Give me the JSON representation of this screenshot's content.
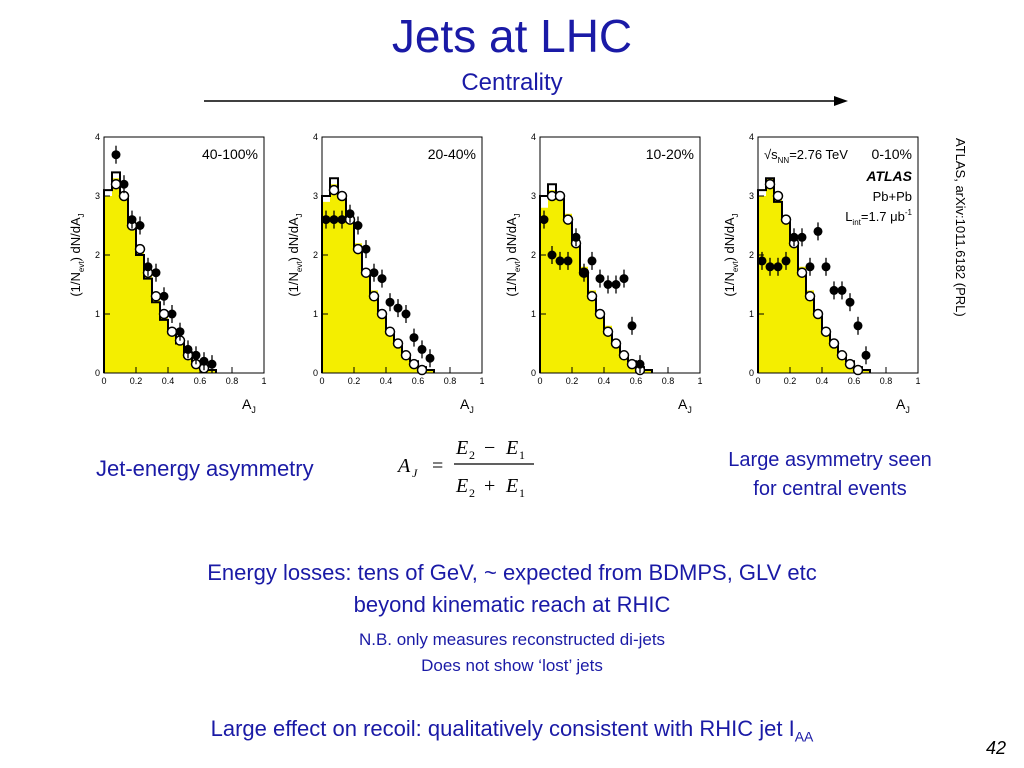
{
  "slide": {
    "title": "Jets at LHC",
    "subtitle": "Centrality",
    "citation": "ATLAS, arXiv:1011.6182 (PRL)",
    "jet_energy_label": "Jet-energy asymmetry",
    "large_asym_line1": "Large asymmetry seen",
    "large_asym_line2": "for central events",
    "line1": "Energy losses: tens of GeV, ~ expected from BDMPS, GLV etc",
    "line2": "beyond kinematic reach at RHIC",
    "line3": "N.B. only measures reconstructed di-jets",
    "line4": "Does not show ‘lost’ jets",
    "recoil_text": "Large effect on recoil: qualitatively consistent with RHIC jet I",
    "recoil_sub": "AA",
    "page_number": "42"
  },
  "formula": {
    "lhs": "A",
    "lhs_sub": "J",
    "equals": "=",
    "num_a": "E",
    "num_a_sub": "2",
    "num_op": "−",
    "num_b": "E",
    "num_b_sub": "1",
    "den_a": "E",
    "den_a_sub": "2",
    "den_op": "+",
    "den_b": "E",
    "den_b_sub": "1"
  },
  "colors": {
    "text_blue": "#1a1aa6",
    "hist_fill": "#f4ee00",
    "frame": "#000000"
  },
  "chart_data": [
    {
      "type": "bar",
      "label": "40-100%",
      "xlabel": "A",
      "xlabel_sub": "J",
      "ylabel": "(1/N",
      "ylabel_sub": "evt",
      "ylabel_tail": ") dN/dA",
      "ylabel_tail_sub": "J",
      "xlim": [
        0,
        1
      ],
      "ylim": [
        0,
        4
      ],
      "x_ticks": [
        "0",
        "0.2",
        "0.4",
        "0.6",
        "0.8",
        "1"
      ],
      "y_ticks": [
        "0",
        "1",
        "2",
        "3",
        "4"
      ],
      "bin_edges": [
        0,
        0.05,
        0.1,
        0.15,
        0.2,
        0.25,
        0.3,
        0.35,
        0.4,
        0.45,
        0.5,
        0.55,
        0.6,
        0.65,
        0.7
      ],
      "hist_fill": [
        3.0,
        3.3,
        3.0,
        2.6,
        2.1,
        1.7,
        1.3,
        1.0,
        0.7,
        0.5,
        0.35,
        0.2,
        0.1,
        0.05
      ],
      "hist_line": [
        3.1,
        3.4,
        3.0,
        2.5,
        2.0,
        1.6,
        1.2,
        0.9,
        0.7,
        0.5,
        0.35,
        0.2,
        0.12,
        0.05
      ],
      "open_points": [
        [
          0.075,
          3.2
        ],
        [
          0.125,
          3.0
        ],
        [
          0.175,
          2.5
        ],
        [
          0.225,
          2.1
        ],
        [
          0.275,
          1.7
        ],
        [
          0.325,
          1.3
        ],
        [
          0.375,
          1.0
        ],
        [
          0.425,
          0.7
        ],
        [
          0.475,
          0.55
        ],
        [
          0.525,
          0.3
        ],
        [
          0.575,
          0.15
        ],
        [
          0.625,
          0.08
        ]
      ],
      "filled_points": [
        [
          0.075,
          3.7
        ],
        [
          0.125,
          3.2
        ],
        [
          0.175,
          2.6
        ],
        [
          0.225,
          2.5
        ],
        [
          0.275,
          1.8
        ],
        [
          0.325,
          1.7
        ],
        [
          0.375,
          1.3
        ],
        [
          0.425,
          1.0
        ],
        [
          0.475,
          0.7
        ],
        [
          0.525,
          0.4
        ],
        [
          0.575,
          0.3
        ],
        [
          0.625,
          0.2
        ],
        [
          0.675,
          0.15
        ]
      ]
    },
    {
      "type": "bar",
      "label": "20-40%",
      "xlabel": "A",
      "xlabel_sub": "J",
      "ylabel": "(1/N",
      "ylabel_sub": "evt",
      "ylabel_tail": ") dN/dA",
      "ylabel_tail_sub": "J",
      "xlim": [
        0,
        1
      ],
      "ylim": [
        0,
        4
      ],
      "x_ticks": [
        "0",
        "0.2",
        "0.4",
        "0.6",
        "0.8",
        "1"
      ],
      "y_ticks": [
        "0",
        "1",
        "2",
        "3",
        "4"
      ],
      "bin_edges": [
        0,
        0.05,
        0.1,
        0.15,
        0.2,
        0.25,
        0.3,
        0.35,
        0.4,
        0.45,
        0.5,
        0.55,
        0.6,
        0.65,
        0.7
      ],
      "hist_fill": [
        2.9,
        3.2,
        3.0,
        2.6,
        2.2,
        1.7,
        1.4,
        1.0,
        0.7,
        0.5,
        0.35,
        0.2,
        0.1,
        0.05
      ],
      "hist_line": [
        3.0,
        3.3,
        3.0,
        2.6,
        2.1,
        1.7,
        1.3,
        1.0,
        0.7,
        0.5,
        0.3,
        0.2,
        0.1,
        0.05
      ],
      "open_points": [
        [
          0.075,
          3.1
        ],
        [
          0.125,
          3.0
        ],
        [
          0.175,
          2.6
        ],
        [
          0.225,
          2.1
        ],
        [
          0.275,
          1.7
        ],
        [
          0.325,
          1.3
        ],
        [
          0.375,
          1.0
        ],
        [
          0.425,
          0.7
        ],
        [
          0.475,
          0.5
        ],
        [
          0.525,
          0.3
        ],
        [
          0.575,
          0.15
        ],
        [
          0.625,
          0.05
        ]
      ],
      "filled_points": [
        [
          0.025,
          2.6
        ],
        [
          0.075,
          2.6
        ],
        [
          0.125,
          2.6
        ],
        [
          0.175,
          2.7
        ],
        [
          0.225,
          2.5
        ],
        [
          0.275,
          2.1
        ],
        [
          0.325,
          1.7
        ],
        [
          0.375,
          1.6
        ],
        [
          0.425,
          1.2
        ],
        [
          0.475,
          1.1
        ],
        [
          0.525,
          1.0
        ],
        [
          0.575,
          0.6
        ],
        [
          0.625,
          0.4
        ],
        [
          0.675,
          0.25
        ]
      ]
    },
    {
      "type": "bar",
      "label": "10-20%",
      "xlabel": "A",
      "xlabel_sub": "J",
      "ylabel": "(1/N",
      "ylabel_sub": "evt",
      "ylabel_tail": ") dN/dA",
      "ylabel_tail_sub": "J",
      "xlim": [
        0,
        1
      ],
      "ylim": [
        0,
        4
      ],
      "x_ticks": [
        "0",
        "0.2",
        "0.4",
        "0.6",
        "0.8",
        "1"
      ],
      "y_ticks": [
        "0",
        "1",
        "2",
        "3",
        "4"
      ],
      "bin_edges": [
        0,
        0.05,
        0.1,
        0.15,
        0.2,
        0.25,
        0.3,
        0.35,
        0.4,
        0.45,
        0.5,
        0.55,
        0.6,
        0.65,
        0.7
      ],
      "hist_fill": [
        2.8,
        3.1,
        3.0,
        2.7,
        2.2,
        1.8,
        1.4,
        1.0,
        0.8,
        0.5,
        0.35,
        0.2,
        0.1,
        0.05
      ],
      "hist_line": [
        3.0,
        3.2,
        3.0,
        2.6,
        2.2,
        1.7,
        1.3,
        1.0,
        0.7,
        0.5,
        0.3,
        0.2,
        0.1,
        0.05
      ],
      "open_points": [
        [
          0.075,
          3.0
        ],
        [
          0.125,
          3.0
        ],
        [
          0.175,
          2.6
        ],
        [
          0.225,
          2.2
        ],
        [
          0.275,
          1.7
        ],
        [
          0.325,
          1.3
        ],
        [
          0.375,
          1.0
        ],
        [
          0.425,
          0.7
        ],
        [
          0.475,
          0.5
        ],
        [
          0.525,
          0.3
        ],
        [
          0.575,
          0.15
        ],
        [
          0.625,
          0.05
        ]
      ],
      "filled_points": [
        [
          0.025,
          2.6
        ],
        [
          0.075,
          2.0
        ],
        [
          0.125,
          1.9
        ],
        [
          0.175,
          1.9
        ],
        [
          0.225,
          2.3
        ],
        [
          0.275,
          1.7
        ],
        [
          0.325,
          1.9
        ],
        [
          0.375,
          1.6
        ],
        [
          0.425,
          1.5
        ],
        [
          0.475,
          1.5
        ],
        [
          0.525,
          1.6
        ],
        [
          0.575,
          0.8
        ],
        [
          0.625,
          0.15
        ]
      ]
    },
    {
      "type": "bar",
      "label": "0-10%",
      "xlabel": "A",
      "xlabel_sub": "J",
      "ylabel": "(1/N",
      "ylabel_sub": "evt",
      "ylabel_tail": ") dN/dA",
      "ylabel_tail_sub": "J",
      "xlim": [
        0,
        1
      ],
      "ylim": [
        0,
        4
      ],
      "x_ticks": [
        "0",
        "0.2",
        "0.4",
        "0.6",
        "0.8",
        "1"
      ],
      "y_ticks": [
        "0",
        "1",
        "2",
        "3",
        "4"
      ],
      "bin_edges": [
        0,
        0.05,
        0.1,
        0.15,
        0.2,
        0.25,
        0.3,
        0.35,
        0.4,
        0.45,
        0.5,
        0.55,
        0.6,
        0.65,
        0.7
      ],
      "hist_fill": [
        3.0,
        3.3,
        3.0,
        2.6,
        2.2,
        1.8,
        1.4,
        1.0,
        0.7,
        0.5,
        0.35,
        0.2,
        0.1,
        0.05
      ],
      "hist_line": [
        3.1,
        3.3,
        2.9,
        2.6,
        2.2,
        1.7,
        1.3,
        1.0,
        0.7,
        0.5,
        0.3,
        0.2,
        0.1,
        0.05
      ],
      "open_points": [
        [
          0.075,
          3.2
        ],
        [
          0.125,
          3.0
        ],
        [
          0.175,
          2.6
        ],
        [
          0.225,
          2.2
        ],
        [
          0.275,
          1.7
        ],
        [
          0.325,
          1.3
        ],
        [
          0.375,
          1.0
        ],
        [
          0.425,
          0.7
        ],
        [
          0.475,
          0.5
        ],
        [
          0.525,
          0.3
        ],
        [
          0.575,
          0.15
        ],
        [
          0.625,
          0.05
        ]
      ],
      "filled_points": [
        [
          0.025,
          1.9
        ],
        [
          0.075,
          1.8
        ],
        [
          0.125,
          1.8
        ],
        [
          0.175,
          1.9
        ],
        [
          0.225,
          2.3
        ],
        [
          0.275,
          2.3
        ],
        [
          0.325,
          1.8
        ],
        [
          0.375,
          2.4
        ],
        [
          0.425,
          1.8
        ],
        [
          0.475,
          1.4
        ],
        [
          0.525,
          1.4
        ],
        [
          0.575,
          1.2
        ],
        [
          0.625,
          0.8
        ],
        [
          0.675,
          0.3
        ]
      ],
      "annotations": {
        "energy_prefix": "√s",
        "energy_sub": "NN",
        "energy_value": "=2.76 TeV",
        "experiment": "ATLAS",
        "system": "Pb+Pb",
        "lumi_prefix": "L",
        "lumi_sub": "int",
        "lumi_value": "=1.7 μb",
        "lumi_sup": "-1"
      }
    }
  ]
}
